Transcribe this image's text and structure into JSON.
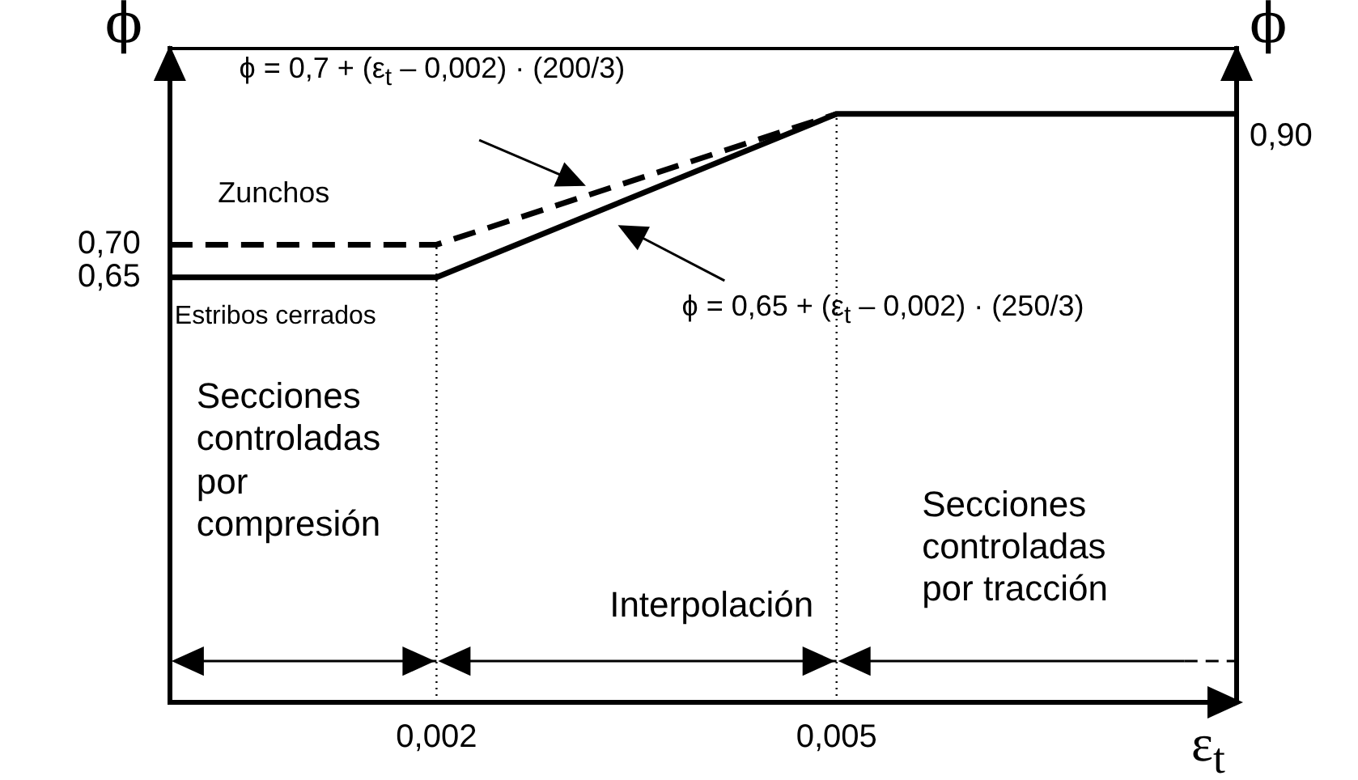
{
  "chart_data": {
    "type": "line",
    "xlabel": "ε$_{t}$",
    "ylabel": "ϕ",
    "y2label": "ϕ",
    "series": [
      {
        "name": "Zunchos",
        "color": "#000000",
        "line_style": "dashed",
        "x": [
          0,
          0.002,
          0.005
        ],
        "values": [
          0.7,
          0.7,
          0.9
        ]
      },
      {
        "name": "Estribos cerrados",
        "color": "#000000",
        "line_style": "solid",
        "x": [
          0,
          0.002,
          0.005,
          0.008
        ],
        "values": [
          0.65,
          0.65,
          0.9,
          0.9
        ]
      }
    ],
    "xlim": [
      0,
      0.008
    ],
    "xticks": [
      {
        "value": 0.002,
        "label": "0,002"
      },
      {
        "value": 0.005,
        "label": "0,005"
      }
    ],
    "ylim": [
      0,
      1
    ],
    "yticks": [
      {
        "value": 0.65,
        "label": "0,65"
      },
      {
        "value": 0.7,
        "label": "0,70"
      }
    ],
    "ref_lines": [
      {
        "axis": "x",
        "value": 0.002,
        "color": "#000000",
        "line_style": "dotted"
      },
      {
        "axis": "x",
        "value": 0.005,
        "color": "#000000",
        "line_style": "dotted"
      }
    ],
    "annotations": [
      {
        "text": "0,90",
        "x": 0.008,
        "y": 0.9
      },
      "ϕ = 0,7 + (ε$_{t}$ – 0,002) · (200/3)",
      "ϕ = 0,65 + (ε$_{t}$ – 0,002) · (250/3)",
      "Secciones controladas por compresión",
      "Interpolación",
      "Secciones controladas por tracción"
    ],
    "marker": "none",
    "grid": false,
    "legend": false
  }
}
